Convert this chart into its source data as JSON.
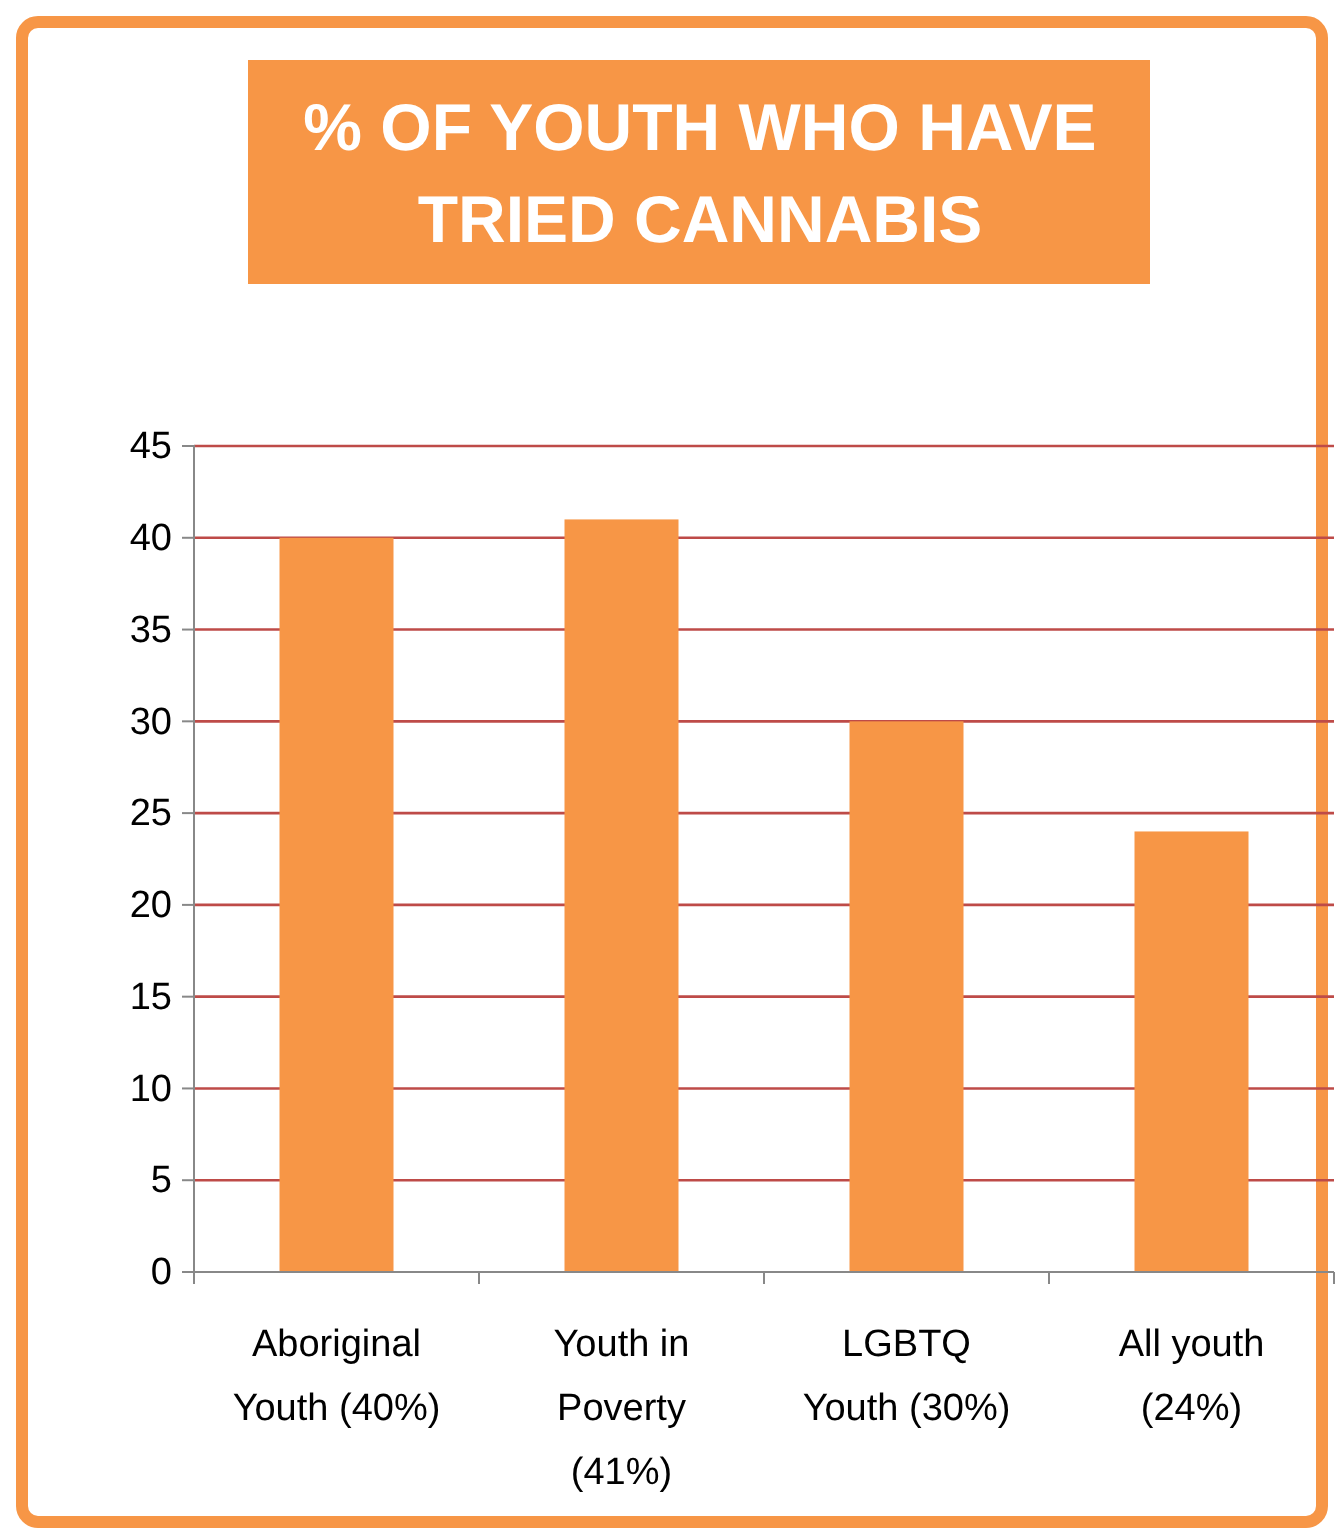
{
  "chart_data": {
    "type": "bar",
    "title": "% OF YOUTH WHO HAVE TRIED CANNABIS",
    "categories": [
      "Aboriginal Youth (40%)",
      "Youth in Poverty (41%)",
      "LGBTQ Youth (30%)",
      "All youth (24%)"
    ],
    "values": [
      40,
      41,
      30,
      24
    ],
    "color": "#f79646",
    "ylim": [
      0,
      45
    ],
    "yticks": [
      0,
      5,
      10,
      15,
      20,
      25,
      30,
      35,
      40,
      45
    ],
    "grid": "y"
  }
}
